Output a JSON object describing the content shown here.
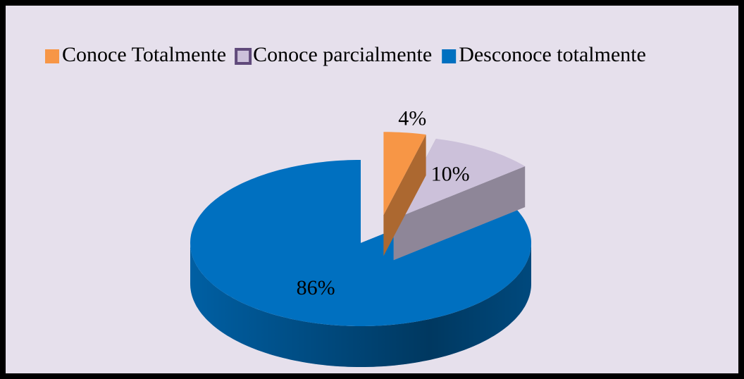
{
  "chart_data": {
    "type": "pie",
    "categories": [
      "Conoce Totalmente",
      "Conoce parcialmente",
      "Desconoce totalmente"
    ],
    "values": [
      4,
      10,
      86
    ],
    "value_labels": [
      "4%",
      "10%",
      "86%"
    ],
    "colors": [
      "#f79646",
      "#ccc1da",
      "#0070c0"
    ],
    "legend": "top"
  }
}
